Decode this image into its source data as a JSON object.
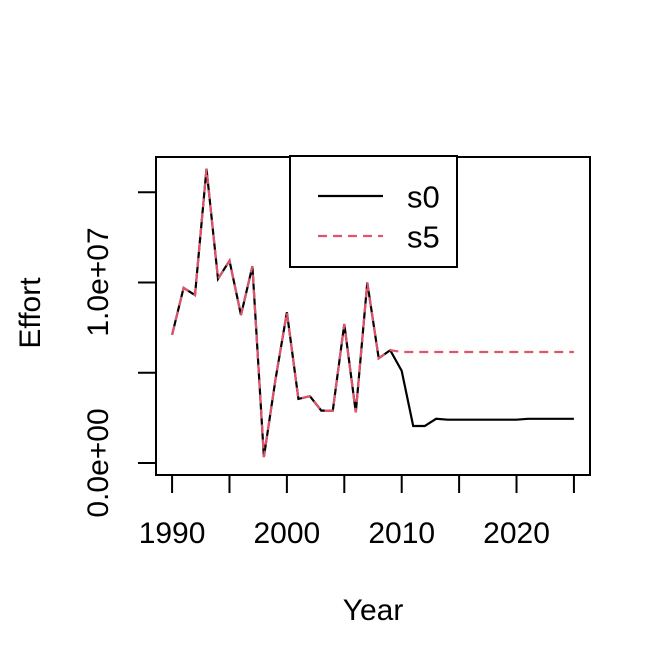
{
  "figure": {
    "background": "#ffffff",
    "kind": "R base line plot"
  },
  "colors": {
    "s0": "#000000",
    "s5": "#DF536B",
    "axis": "#000000",
    "legend_border": "#000000",
    "legend_fill": "#ffffff"
  },
  "chart_data": {
    "type": "line",
    "title": "",
    "xlabel": "Year",
    "ylabel": "Effort",
    "xlim": [
      1988.6,
      2026.4
    ],
    "ylim": [
      -665000,
      16950000
    ],
    "grid": false,
    "x_ticks": [
      1990,
      1995,
      2000,
      2005,
      2010,
      2015,
      2020,
      2025
    ],
    "x_tick_labels": [
      "1990",
      "",
      "2000",
      "",
      "2010",
      "",
      "2020",
      ""
    ],
    "y_ticks": [
      0,
      5000000,
      10000000,
      15000000
    ],
    "y_tick_labels": [
      "0.0e+00",
      "",
      "1.0e+07",
      ""
    ],
    "x": [
      1990,
      1991,
      1992,
      1993,
      1994,
      1995,
      1996,
      1997,
      1998,
      1999,
      2000,
      2001,
      2002,
      2003,
      2004,
      2005,
      2006,
      2007,
      2008,
      2009,
      2010,
      2011,
      2012,
      2013,
      2014,
      2015,
      2016,
      2017,
      2018,
      2019,
      2020,
      2021,
      2022,
      2023,
      2024,
      2025
    ],
    "series": [
      {
        "name": "s0",
        "color": "#000000",
        "style": "solid",
        "values": [
          7100000,
          9700000,
          9300000,
          16300000,
          10200000,
          11200000,
          8200000,
          10900000,
          330000,
          4600000,
          8350000,
          3550000,
          3700000,
          2900000,
          2900000,
          7700000,
          2800000,
          10000000,
          5800000,
          6250000,
          5100000,
          2050000,
          2050000,
          2450000,
          2400000,
          2400000,
          2400000,
          2400000,
          2400000,
          2400000,
          2400000,
          2450000,
          2450000,
          2450000,
          2450000,
          2450000
        ]
      },
      {
        "name": "s5",
        "color": "#DF536B",
        "style": "dashed",
        "values": [
          7100000,
          9700000,
          9300000,
          16300000,
          10200000,
          11200000,
          8200000,
          10900000,
          330000,
          4600000,
          8350000,
          3550000,
          3700000,
          2900000,
          2900000,
          7700000,
          2800000,
          10000000,
          5800000,
          6250000,
          6150000,
          6150000,
          6150000,
          6150000,
          6150000,
          6150000,
          6150000,
          6150000,
          6150000,
          6150000,
          6150000,
          6150000,
          6150000,
          6150000,
          6150000,
          6150000
        ]
      }
    ],
    "legend": {
      "position": "top-inside",
      "entries": [
        {
          "label": "s0",
          "color": "#000000",
          "style": "solid"
        },
        {
          "label": "s5",
          "color": "#DF536B",
          "style": "dashed"
        }
      ]
    }
  }
}
